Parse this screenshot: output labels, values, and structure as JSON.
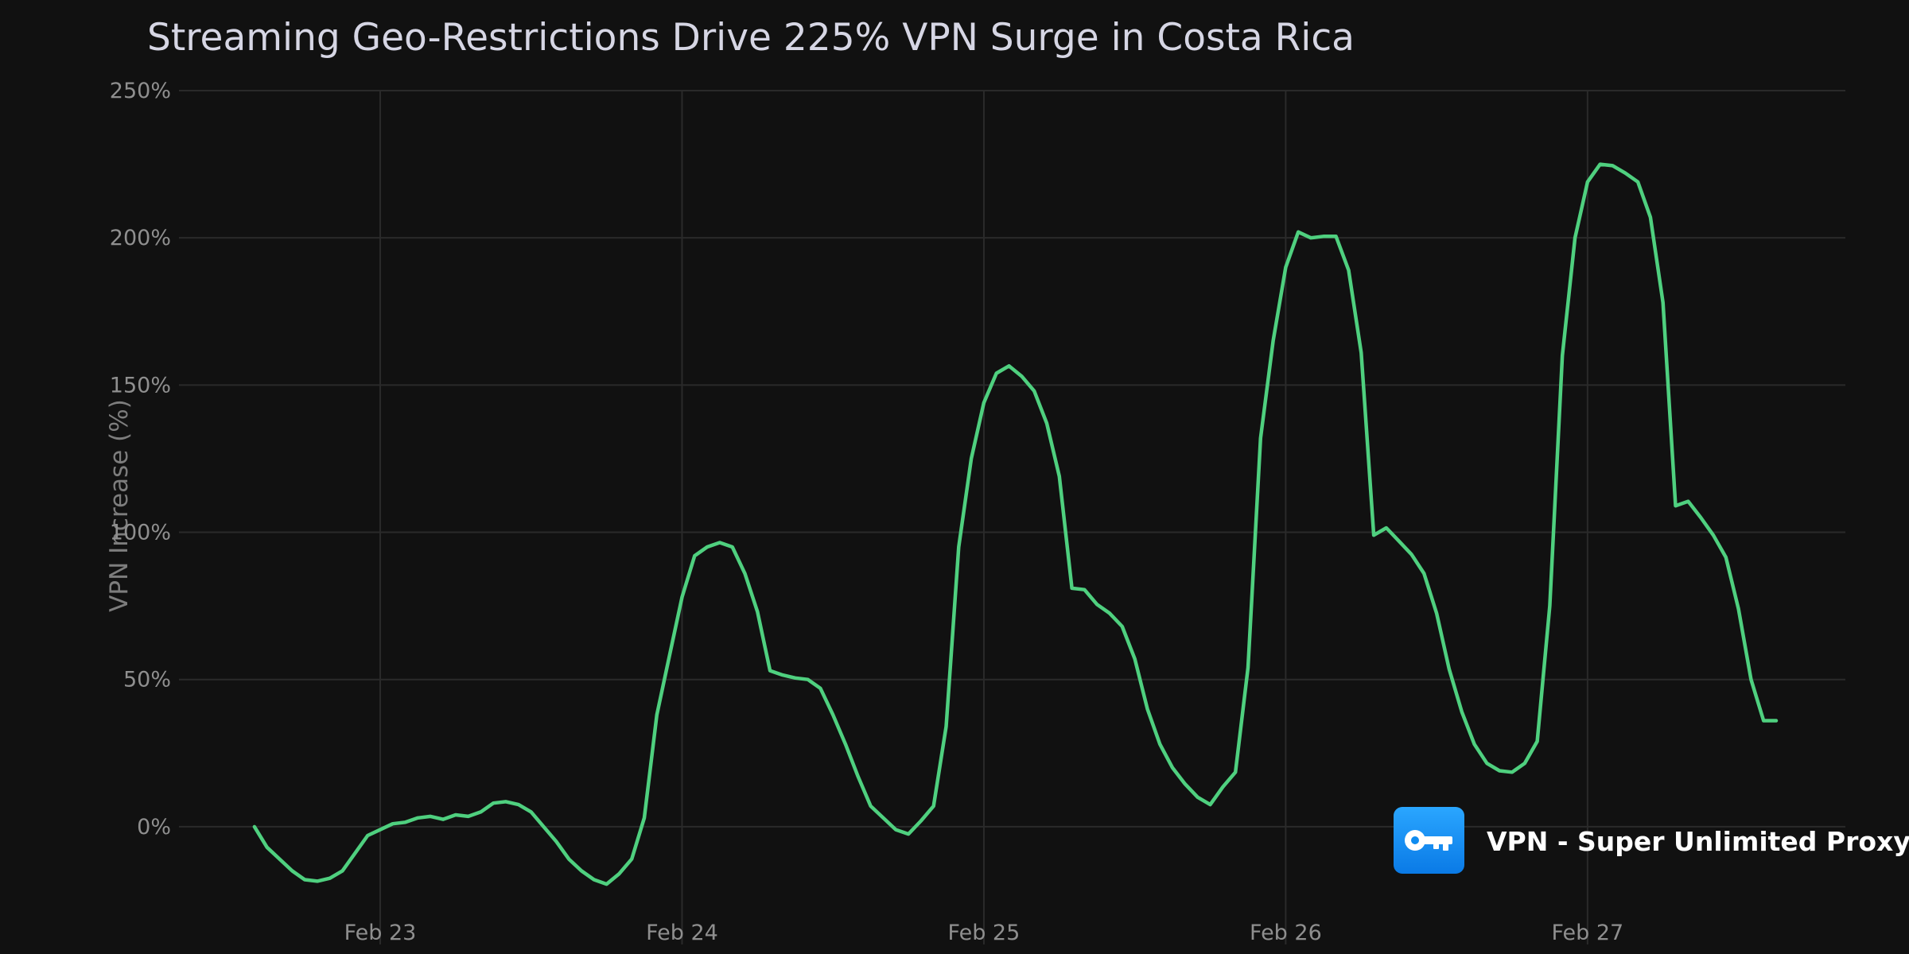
{
  "chart_data": {
    "type": "line",
    "title": "Streaming Geo-Restrictions Drive 225% VPN Surge in Costa Rica",
    "xlabel": "",
    "ylabel": "VPN Increase (%)",
    "ylim": [
      -40,
      250
    ],
    "yticks": [
      0,
      50,
      100,
      150,
      200,
      250
    ],
    "ytick_labels": [
      "0%",
      "50%",
      "100%",
      "150%",
      "200%",
      "250%"
    ],
    "xlim": [
      "2025-02-22 08:00",
      "2025-02-27 20:30"
    ],
    "xticks": [
      "2025-02-23",
      "2025-02-24",
      "2025-02-25",
      "2025-02-26",
      "2025-02-27"
    ],
    "xtick_labels": [
      "Feb 23",
      "Feb 24",
      "Feb 25",
      "Feb 26",
      "Feb 27"
    ],
    "grid": true,
    "series": [
      {
        "color": "#4fd07f",
        "x": [
          "2025-02-22 14:00",
          "2025-02-22 15:00",
          "2025-02-22 16:00",
          "2025-02-22 17:00",
          "2025-02-22 18:00",
          "2025-02-22 19:00",
          "2025-02-22 20:00",
          "2025-02-22 21:00",
          "2025-02-22 22:00",
          "2025-02-22 23:00",
          "2025-02-23 00:00",
          "2025-02-23 01:00",
          "2025-02-23 02:00",
          "2025-02-23 03:00",
          "2025-02-23 04:00",
          "2025-02-23 05:00",
          "2025-02-23 06:00",
          "2025-02-23 07:00",
          "2025-02-23 08:00",
          "2025-02-23 09:00",
          "2025-02-23 10:00",
          "2025-02-23 11:00",
          "2025-02-23 12:00",
          "2025-02-23 13:00",
          "2025-02-23 14:00",
          "2025-02-23 15:00",
          "2025-02-23 16:00",
          "2025-02-23 17:00",
          "2025-02-23 18:00",
          "2025-02-23 19:00",
          "2025-02-23 20:00",
          "2025-02-23 21:00",
          "2025-02-23 22:00",
          "2025-02-23 23:00",
          "2025-02-24 00:00",
          "2025-02-24 01:00",
          "2025-02-24 02:00",
          "2025-02-24 03:00",
          "2025-02-24 04:00",
          "2025-02-24 05:00",
          "2025-02-24 06:00",
          "2025-02-24 07:00",
          "2025-02-24 08:00",
          "2025-02-24 09:00",
          "2025-02-24 10:00",
          "2025-02-24 11:00",
          "2025-02-24 12:00",
          "2025-02-24 13:00",
          "2025-02-24 14:00",
          "2025-02-24 15:00",
          "2025-02-24 16:00",
          "2025-02-24 17:00",
          "2025-02-24 18:00",
          "2025-02-24 19:00",
          "2025-02-24 20:00",
          "2025-02-24 21:00",
          "2025-02-24 22:00",
          "2025-02-24 23:00",
          "2025-02-25 00:00",
          "2025-02-25 01:00",
          "2025-02-25 02:00",
          "2025-02-25 03:00",
          "2025-02-25 04:00",
          "2025-02-25 05:00",
          "2025-02-25 06:00",
          "2025-02-25 07:00",
          "2025-02-25 08:00",
          "2025-02-25 09:00",
          "2025-02-25 10:00",
          "2025-02-25 11:00",
          "2025-02-25 12:00",
          "2025-02-25 13:00",
          "2025-02-25 14:00",
          "2025-02-25 15:00",
          "2025-02-25 16:00",
          "2025-02-25 17:00",
          "2025-02-25 18:00",
          "2025-02-25 19:00",
          "2025-02-25 20:00",
          "2025-02-25 21:00",
          "2025-02-25 22:00",
          "2025-02-25 23:00",
          "2025-02-26 00:00",
          "2025-02-26 01:00",
          "2025-02-26 02:00",
          "2025-02-26 03:00",
          "2025-02-26 04:00",
          "2025-02-26 05:00",
          "2025-02-26 06:00",
          "2025-02-26 07:00",
          "2025-02-26 08:00",
          "2025-02-26 09:00",
          "2025-02-26 10:00",
          "2025-02-26 11:00",
          "2025-02-26 12:00",
          "2025-02-26 13:00",
          "2025-02-26 14:00",
          "2025-02-26 15:00",
          "2025-02-26 16:00",
          "2025-02-26 17:00",
          "2025-02-26 18:00",
          "2025-02-26 19:00",
          "2025-02-26 20:00",
          "2025-02-26 21:00",
          "2025-02-26 22:00",
          "2025-02-26 23:00",
          "2025-02-27 00:00",
          "2025-02-27 01:00",
          "2025-02-27 02:00",
          "2025-02-27 03:00",
          "2025-02-27 04:00",
          "2025-02-27 05:00",
          "2025-02-27 06:00",
          "2025-02-27 07:00",
          "2025-02-27 08:00",
          "2025-02-27 09:00",
          "2025-02-27 10:00",
          "2025-02-27 11:00",
          "2025-02-27 12:00",
          "2025-02-27 13:00",
          "2025-02-27 14:00",
          "2025-02-27 15:00"
        ],
        "y": [
          0,
          -7,
          -11,
          -15,
          -18,
          -18.5,
          -17.5,
          -15,
          -9,
          -3,
          -1,
          1,
          1.5,
          3,
          3.5,
          2.5,
          4,
          3.5,
          5,
          8,
          8.5,
          7.5,
          5,
          0,
          -5,
          -11,
          -15,
          -18,
          -19.5,
          -16,
          -11,
          3,
          38,
          58,
          78,
          92,
          95,
          96.5,
          95,
          86,
          73,
          53,
          51.5,
          50.5,
          50,
          47,
          38,
          28,
          17,
          7,
          3,
          -1,
          -2.5,
          2,
          7,
          34,
          95,
          125,
          144,
          154,
          156.5,
          153,
          148,
          137,
          119,
          81,
          80.5,
          75.5,
          72.5,
          68,
          57,
          40,
          28,
          20,
          14.5,
          10,
          7.5,
          13.5,
          18.5,
          54,
          132,
          165,
          190,
          202,
          200,
          200.5,
          200.5,
          189,
          161,
          99,
          101.5,
          97,
          92.5,
          86,
          72.5,
          53.5,
          39,
          28,
          21.5,
          19,
          18.5,
          21.5,
          29,
          75,
          160,
          200,
          219,
          225,
          224.5,
          222,
          219,
          207,
          178,
          109,
          110.5,
          105,
          99,
          91.5,
          74,
          50,
          36,
          36
        ]
      }
    ]
  },
  "brand": {
    "name": "VPN - Super Unlimited Proxy",
    "icon": "key-icon",
    "icon_bg_top": "#2aa6ff",
    "icon_bg_bottom": "#0a7ae6"
  },
  "colors": {
    "background": "#111111",
    "grid": "#2a2a2a",
    "line": "#4fd07f"
  }
}
